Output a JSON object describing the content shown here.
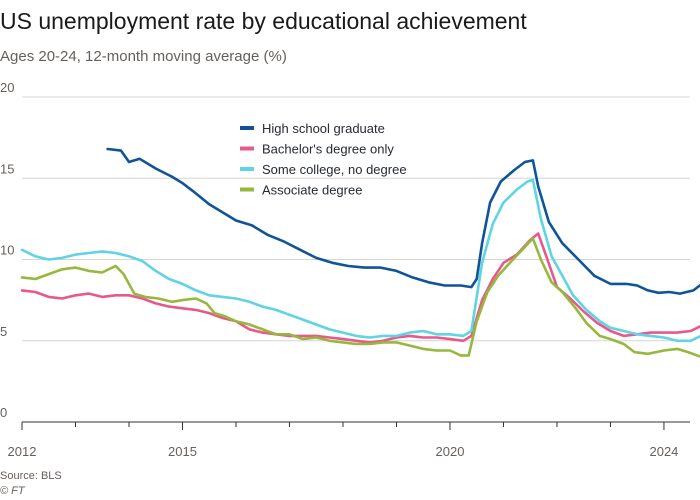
{
  "header": {
    "title": "US unemployment rate by educational achievement",
    "subtitle": "Ages 20-24, 12-month moving average (%)"
  },
  "footer": {
    "source": "Source: BLS",
    "credit": "© FT"
  },
  "chart_data": {
    "type": "line",
    "title": "US unemployment rate by educational achievement",
    "subtitle": "Ages 20-24, 12-month moving average (%)",
    "xlabel": "",
    "ylabel": "%",
    "xlim": [
      2012.0,
      2024.3
    ],
    "ylim": [
      0,
      20
    ],
    "y_ticks": [
      0,
      5,
      10,
      15,
      20
    ],
    "x_ticks": [
      {
        "value": 2012,
        "label": "2012"
      },
      {
        "value": 2015,
        "label": "2015"
      },
      {
        "value": 2020,
        "label": "2020"
      },
      {
        "value": 2024,
        "label": "2024"
      }
    ],
    "x_minor_ticks": [
      2013,
      2014,
      2016,
      2017,
      2018,
      2019,
      2021,
      2022,
      2023
    ],
    "grid": true,
    "legend_position": "top-center",
    "series": [
      {
        "name": "High school graduate",
        "color": "#0f5499",
        "points": [
          [
            2013.6,
            16.8
          ],
          [
            2013.85,
            16.7
          ],
          [
            2014.0,
            16.0
          ],
          [
            2014.2,
            16.2
          ],
          [
            2014.5,
            15.6
          ],
          [
            2014.8,
            15.1
          ],
          [
            2015.0,
            14.7
          ],
          [
            2015.2,
            14.2
          ],
          [
            2015.5,
            13.4
          ],
          [
            2015.8,
            12.8
          ],
          [
            2016.0,
            12.4
          ],
          [
            2016.3,
            12.1
          ],
          [
            2016.6,
            11.5
          ],
          [
            2016.9,
            11.1
          ],
          [
            2017.2,
            10.6
          ],
          [
            2017.5,
            10.1
          ],
          [
            2017.8,
            9.8
          ],
          [
            2018.1,
            9.6
          ],
          [
            2018.4,
            9.5
          ],
          [
            2018.7,
            9.5
          ],
          [
            2019.0,
            9.3
          ],
          [
            2019.3,
            8.9
          ],
          [
            2019.6,
            8.6
          ],
          [
            2019.9,
            8.4
          ],
          [
            2020.2,
            8.4
          ],
          [
            2020.4,
            8.3
          ],
          [
            2020.5,
            8.8
          ],
          [
            2020.6,
            11.0
          ],
          [
            2020.75,
            13.5
          ],
          [
            2020.95,
            14.8
          ],
          [
            2021.2,
            15.5
          ],
          [
            2021.4,
            16.0
          ],
          [
            2021.55,
            16.1
          ],
          [
            2021.65,
            14.5
          ],
          [
            2021.85,
            12.3
          ],
          [
            2022.1,
            11.0
          ],
          [
            2022.4,
            10.0
          ],
          [
            2022.7,
            9.0
          ],
          [
            2023.0,
            8.5
          ],
          [
            2023.3,
            8.5
          ],
          [
            2023.5,
            8.4
          ],
          [
            2023.7,
            8.1
          ],
          [
            2023.9,
            7.95
          ],
          [
            2024.1,
            8.0
          ],
          [
            2024.3,
            7.9
          ],
          [
            2024.55,
            8.1
          ],
          [
            2024.75,
            8.6
          ]
        ]
      },
      {
        "name": "Bachelor's degree only",
        "color": "#e8588b",
        "points": [
          [
            2012.0,
            8.1
          ],
          [
            2012.25,
            8.0
          ],
          [
            2012.5,
            7.7
          ],
          [
            2012.75,
            7.6
          ],
          [
            2013.0,
            7.8
          ],
          [
            2013.25,
            7.9
          ],
          [
            2013.5,
            7.7
          ],
          [
            2013.75,
            7.8
          ],
          [
            2014.0,
            7.8
          ],
          [
            2014.25,
            7.6
          ],
          [
            2014.5,
            7.3
          ],
          [
            2014.75,
            7.1
          ],
          [
            2015.0,
            7.0
          ],
          [
            2015.25,
            6.9
          ],
          [
            2015.5,
            6.7
          ],
          [
            2015.75,
            6.4
          ],
          [
            2016.0,
            6.2
          ],
          [
            2016.25,
            5.7
          ],
          [
            2016.5,
            5.5
          ],
          [
            2016.75,
            5.4
          ],
          [
            2017.0,
            5.3
          ],
          [
            2017.25,
            5.3
          ],
          [
            2017.5,
            5.3
          ],
          [
            2017.75,
            5.2
          ],
          [
            2018.0,
            5.1
          ],
          [
            2018.25,
            5.0
          ],
          [
            2018.5,
            4.9
          ],
          [
            2018.75,
            5.0
          ],
          [
            2019.0,
            5.2
          ],
          [
            2019.25,
            5.3
          ],
          [
            2019.5,
            5.2
          ],
          [
            2019.75,
            5.2
          ],
          [
            2020.0,
            5.1
          ],
          [
            2020.25,
            5.0
          ],
          [
            2020.4,
            5.3
          ],
          [
            2020.6,
            7.5
          ],
          [
            2020.8,
            8.8
          ],
          [
            2021.0,
            9.8
          ],
          [
            2021.25,
            10.3
          ],
          [
            2021.5,
            11.2
          ],
          [
            2021.65,
            11.6
          ],
          [
            2021.8,
            10.2
          ],
          [
            2022.0,
            8.3
          ],
          [
            2022.25,
            7.6
          ],
          [
            2022.5,
            6.8
          ],
          [
            2022.75,
            6.1
          ],
          [
            2023.0,
            5.6
          ],
          [
            2023.25,
            5.3
          ],
          [
            2023.5,
            5.4
          ],
          [
            2023.75,
            5.5
          ],
          [
            2024.0,
            5.5
          ],
          [
            2024.25,
            5.5
          ],
          [
            2024.5,
            5.6
          ],
          [
            2024.75,
            6.0
          ]
        ]
      },
      {
        "name": "Some college, no degree",
        "color": "#5fd4e2",
        "points": [
          [
            2012.0,
            10.6
          ],
          [
            2012.25,
            10.2
          ],
          [
            2012.5,
            10.0
          ],
          [
            2012.75,
            10.1
          ],
          [
            2013.0,
            10.3
          ],
          [
            2013.25,
            10.4
          ],
          [
            2013.5,
            10.5
          ],
          [
            2013.75,
            10.4
          ],
          [
            2014.0,
            10.2
          ],
          [
            2014.25,
            9.9
          ],
          [
            2014.5,
            9.3
          ],
          [
            2014.75,
            8.8
          ],
          [
            2015.0,
            8.5
          ],
          [
            2015.25,
            8.1
          ],
          [
            2015.5,
            7.8
          ],
          [
            2015.75,
            7.7
          ],
          [
            2016.0,
            7.6
          ],
          [
            2016.25,
            7.4
          ],
          [
            2016.5,
            7.1
          ],
          [
            2016.75,
            6.9
          ],
          [
            2017.0,
            6.6
          ],
          [
            2017.25,
            6.3
          ],
          [
            2017.5,
            6.0
          ],
          [
            2017.75,
            5.7
          ],
          [
            2018.0,
            5.5
          ],
          [
            2018.25,
            5.3
          ],
          [
            2018.5,
            5.2
          ],
          [
            2018.75,
            5.3
          ],
          [
            2019.0,
            5.3
          ],
          [
            2019.25,
            5.5
          ],
          [
            2019.5,
            5.6
          ],
          [
            2019.75,
            5.4
          ],
          [
            2020.0,
            5.4
          ],
          [
            2020.25,
            5.3
          ],
          [
            2020.4,
            5.6
          ],
          [
            2020.6,
            9.8
          ],
          [
            2020.8,
            12.2
          ],
          [
            2021.0,
            13.5
          ],
          [
            2021.25,
            14.3
          ],
          [
            2021.45,
            14.8
          ],
          [
            2021.55,
            14.9
          ],
          [
            2021.7,
            12.5
          ],
          [
            2021.9,
            10.2
          ],
          [
            2022.1,
            9.0
          ],
          [
            2022.3,
            7.8
          ],
          [
            2022.55,
            6.9
          ],
          [
            2022.8,
            6.2
          ],
          [
            2023.0,
            5.8
          ],
          [
            2023.25,
            5.6
          ],
          [
            2023.5,
            5.4
          ],
          [
            2023.75,
            5.3
          ],
          [
            2024.0,
            5.2
          ],
          [
            2024.25,
            5.0
          ],
          [
            2024.5,
            5.0
          ],
          [
            2024.75,
            5.4
          ]
        ]
      },
      {
        "name": "Associate degree",
        "color": "#96b83c",
        "points": [
          [
            2012.0,
            8.9
          ],
          [
            2012.25,
            8.8
          ],
          [
            2012.5,
            9.1
          ],
          [
            2012.75,
            9.4
          ],
          [
            2013.0,
            9.5
          ],
          [
            2013.25,
            9.3
          ],
          [
            2013.5,
            9.2
          ],
          [
            2013.75,
            9.6
          ],
          [
            2013.9,
            9.1
          ],
          [
            2014.1,
            7.9
          ],
          [
            2014.3,
            7.7
          ],
          [
            2014.55,
            7.6
          ],
          [
            2014.8,
            7.4
          ],
          [
            2015.0,
            7.5
          ],
          [
            2015.25,
            7.6
          ],
          [
            2015.45,
            7.3
          ],
          [
            2015.6,
            6.7
          ],
          [
            2015.8,
            6.5
          ],
          [
            2016.0,
            6.2
          ],
          [
            2016.25,
            6.0
          ],
          [
            2016.5,
            5.7
          ],
          [
            2016.75,
            5.4
          ],
          [
            2017.0,
            5.4
          ],
          [
            2017.25,
            5.1
          ],
          [
            2017.5,
            5.2
          ],
          [
            2017.75,
            5.0
          ],
          [
            2018.0,
            4.9
          ],
          [
            2018.25,
            4.8
          ],
          [
            2018.5,
            4.8
          ],
          [
            2018.75,
            4.9
          ],
          [
            2019.0,
            4.9
          ],
          [
            2019.25,
            4.7
          ],
          [
            2019.5,
            4.5
          ],
          [
            2019.75,
            4.4
          ],
          [
            2020.0,
            4.4
          ],
          [
            2020.2,
            4.1
          ],
          [
            2020.35,
            4.1
          ],
          [
            2020.5,
            6.2
          ],
          [
            2020.7,
            8.0
          ],
          [
            2020.9,
            9.0
          ],
          [
            2021.15,
            9.9
          ],
          [
            2021.35,
            10.6
          ],
          [
            2021.55,
            11.3
          ],
          [
            2021.7,
            10.0
          ],
          [
            2021.9,
            8.6
          ],
          [
            2022.1,
            8.0
          ],
          [
            2022.35,
            7.0
          ],
          [
            2022.55,
            6.1
          ],
          [
            2022.8,
            5.3
          ],
          [
            2023.0,
            5.1
          ],
          [
            2023.25,
            4.8
          ],
          [
            2023.45,
            4.3
          ],
          [
            2023.7,
            4.2
          ],
          [
            2024.0,
            4.4
          ],
          [
            2024.25,
            4.5
          ],
          [
            2024.45,
            4.3
          ],
          [
            2024.7,
            4.0
          ],
          [
            2024.85,
            3.9
          ]
        ]
      }
    ]
  }
}
